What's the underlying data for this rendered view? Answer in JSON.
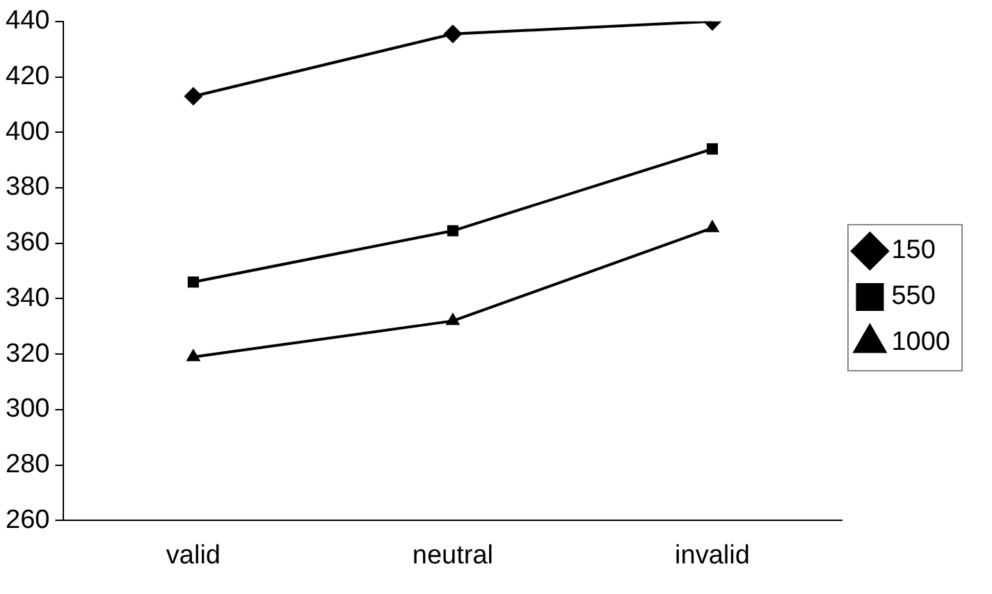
{
  "chart_data": {
    "type": "line",
    "categories": [
      "valid",
      "neutral",
      "invalid"
    ],
    "series": [
      {
        "name": "150",
        "color": "#000000",
        "marker": "diamond",
        "values": [
          413,
          435.5,
          440
        ]
      },
      {
        "name": "550",
        "color": "#000000",
        "marker": "square",
        "values": [
          346,
          364.5,
          394
        ]
      },
      {
        "name": "1000",
        "color": "#000000",
        "marker": "triangle",
        "values": [
          319,
          332,
          365.5
        ]
      }
    ],
    "ylim": [
      260,
      440
    ],
    "yticks": [
      260,
      280,
      300,
      320,
      340,
      360,
      380,
      400,
      420,
      440
    ],
    "grid": false,
    "legend": "right",
    "line_style": "solid"
  }
}
